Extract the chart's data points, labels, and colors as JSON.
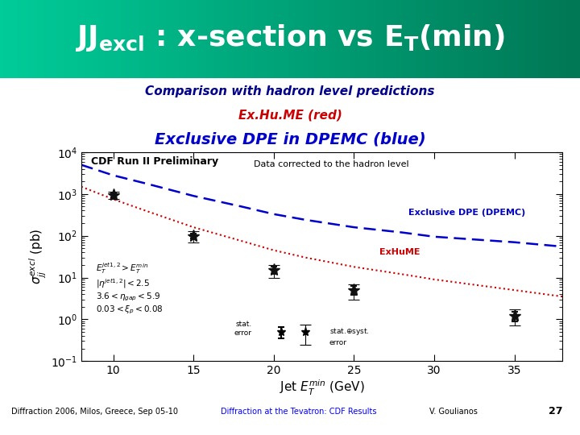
{
  "subtitle1": "Comparison with hadron level predictions",
  "subtitle2_red": "Ex.Hu.ME (red)",
  "subtitle3_blue": "Exclusive DPE in DPEMC (blue)",
  "plot_label": "CDF Run II Preliminary",
  "annotation": "Data corrected to the hadron level",
  "label_blue": "Exclusive DPE (DPEMC)",
  "label_red": "ExHuME",
  "data_x": [
    10,
    15,
    20,
    25,
    35
  ],
  "data_y": [
    950,
    100,
    15,
    5.0,
    1.2
  ],
  "data_yerr_stat": [
    120,
    15,
    3,
    1.2,
    0.3
  ],
  "data_yerr_syst": [
    200,
    30,
    5,
    2.0,
    0.5
  ],
  "blue_x": [
    8,
    10,
    12,
    15,
    18,
    20,
    22,
    25,
    28,
    30,
    35,
    38
  ],
  "blue_y": [
    5000,
    2800,
    1800,
    900,
    500,
    330,
    240,
    160,
    120,
    95,
    70,
    55
  ],
  "red_x": [
    8,
    10,
    12,
    15,
    18,
    20,
    22,
    25,
    28,
    30,
    35,
    38
  ],
  "red_y": [
    1500,
    750,
    400,
    160,
    75,
    45,
    30,
    18,
    12,
    9,
    5,
    3.5
  ],
  "xmin": 8,
  "xmax": 38,
  "ymin": 0.1,
  "ymax": 10000,
  "xlabel": "Jet $E_{T}^{min}$ (GeV)",
  "ylabel": "$\\sigma_{jj}^{excl}$ (pb)",
  "footer_left": "Diffraction 2006, Milos, Greece, Sep 05-10",
  "footer_mid": "Diffraction at the Tevatron: CDF Results",
  "footer_right": "V. Goulianos",
  "footer_page": "27",
  "conditions": [
    "$E_T^{jet1,2} > E_T^{min}$",
    "$|\\eta^{jet1,2}| < 2.5$",
    "$3.6 < \\eta_{gap} < 5.9$",
    "$0.03 < \\xi_p < 0.08$"
  ],
  "tick_x": [
    10,
    15,
    20,
    25,
    30,
    35
  ],
  "bg_white": "#ffffff",
  "bg_green_top": "#00cc99",
  "bg_green_bot": "#007755",
  "data_color": "#111111",
  "blue_color": "#0000cc",
  "red_color": "#cc0000"
}
